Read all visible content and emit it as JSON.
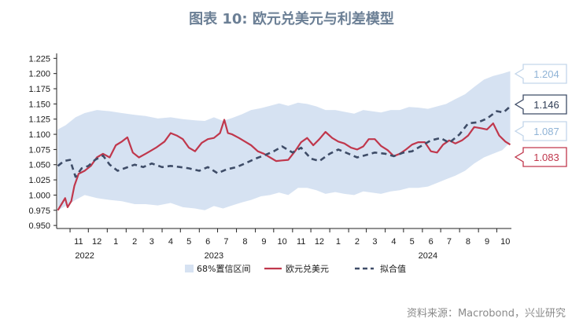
{
  "title": "图表 10: 欧元兑美元与利差模型",
  "source": "资料来源：Macrobond，兴业研究",
  "chart_data": {
    "type": "line",
    "yticks": [
      "1.225",
      "1.200",
      "1.175",
      "1.150",
      "1.125",
      "1.100",
      "1.075",
      "1.050",
      "1.025",
      "1.000",
      "0.975",
      "0.950"
    ],
    "ylim": [
      0.945,
      1.228
    ],
    "xlim": [
      "2022-10-10",
      "2024-10-25"
    ],
    "month_labels": [
      {
        "date": "2022-11-15",
        "label": "11"
      },
      {
        "date": "2022-12-15",
        "label": "12"
      },
      {
        "date": "2023-01-15",
        "label": "1"
      },
      {
        "date": "2023-02-15",
        "label": "2"
      },
      {
        "date": "2023-03-15",
        "label": "3"
      },
      {
        "date": "2023-04-15",
        "label": "4"
      },
      {
        "date": "2023-05-15",
        "label": "5"
      },
      {
        "date": "2023-06-15",
        "label": "6"
      },
      {
        "date": "2023-07-15",
        "label": "7"
      },
      {
        "date": "2023-08-15",
        "label": "8"
      },
      {
        "date": "2023-09-15",
        "label": "9"
      },
      {
        "date": "2023-10-15",
        "label": "10"
      },
      {
        "date": "2023-11-15",
        "label": "11"
      },
      {
        "date": "2023-12-15",
        "label": "12"
      },
      {
        "date": "2024-01-15",
        "label": "1"
      },
      {
        "date": "2024-02-15",
        "label": "2"
      },
      {
        "date": "2024-03-15",
        "label": "3"
      },
      {
        "date": "2024-04-15",
        "label": "4"
      },
      {
        "date": "2024-05-15",
        "label": "5"
      },
      {
        "date": "2024-06-15",
        "label": "6"
      },
      {
        "date": "2024-07-15",
        "label": "7"
      },
      {
        "date": "2024-08-15",
        "label": "8"
      },
      {
        "date": "2024-09-15",
        "label": "9"
      },
      {
        "date": "2024-10-15",
        "label": "10"
      }
    ],
    "year_labels": [
      {
        "date": "2022-11-25",
        "label": "2022"
      },
      {
        "date": "2023-06-25",
        "label": "2023"
      },
      {
        "date": "2024-06-10",
        "label": "2024"
      }
    ],
    "series": [
      {
        "name": "68%置信区间",
        "kind": "band",
        "color": "#d6e2f2",
        "x": [
          "2022-10-12",
          "2022-10-25",
          "2022-11-10",
          "2022-11-25",
          "2022-12-15",
          "2023-01-05",
          "2023-01-25",
          "2023-02-15",
          "2023-03-05",
          "2023-03-25",
          "2023-04-15",
          "2023-05-05",
          "2023-05-25",
          "2023-06-10",
          "2023-06-25",
          "2023-07-10",
          "2023-07-25",
          "2023-08-10",
          "2023-08-25",
          "2023-09-10",
          "2023-09-25",
          "2023-10-10",
          "2023-10-25",
          "2023-11-10",
          "2023-11-25",
          "2023-12-10",
          "2023-12-25",
          "2024-01-10",
          "2024-01-25",
          "2024-02-10",
          "2024-02-25",
          "2024-03-10",
          "2024-03-25",
          "2024-04-10",
          "2024-04-25",
          "2024-05-10",
          "2024-05-25",
          "2024-06-10",
          "2024-06-25",
          "2024-07-10",
          "2024-07-25",
          "2024-08-10",
          "2024-08-25",
          "2024-09-10",
          "2024-09-25",
          "2024-10-10",
          "2024-10-23"
        ],
        "upper": [
          1.108,
          1.115,
          1.128,
          1.135,
          1.14,
          1.138,
          1.135,
          1.132,
          1.13,
          1.126,
          1.128,
          1.125,
          1.123,
          1.122,
          1.128,
          1.122,
          1.127,
          1.133,
          1.14,
          1.143,
          1.147,
          1.151,
          1.147,
          1.152,
          1.15,
          1.146,
          1.14,
          1.14,
          1.137,
          1.134,
          1.14,
          1.138,
          1.136,
          1.14,
          1.14,
          1.145,
          1.144,
          1.142,
          1.146,
          1.15,
          1.158,
          1.166,
          1.178,
          1.19,
          1.196,
          1.2,
          1.204
        ],
        "lower": [
          0.975,
          0.982,
          0.992,
          1.0,
          0.995,
          0.992,
          0.99,
          0.985,
          0.985,
          0.983,
          0.987,
          0.98,
          0.978,
          0.975,
          0.982,
          0.978,
          0.983,
          0.988,
          0.992,
          0.998,
          1.0,
          1.004,
          1.0,
          1.012,
          1.012,
          1.008,
          1.002,
          1.005,
          1.002,
          1.0,
          1.006,
          1.004,
          1.002,
          1.006,
          1.008,
          1.012,
          1.012,
          1.014,
          1.02,
          1.026,
          1.032,
          1.04,
          1.052,
          1.062,
          1.068,
          1.074,
          1.087
        ]
      },
      {
        "name": "欧元兑美元",
        "kind": "line",
        "color": "#c0374c",
        "x": [
          "2022-10-12",
          "2022-10-18",
          "2022-10-24",
          "2022-10-28",
          "2022-11-03",
          "2022-11-08",
          "2022-11-15",
          "2022-11-25",
          "2022-12-05",
          "2022-12-15",
          "2022-12-25",
          "2023-01-05",
          "2023-01-15",
          "2023-01-25",
          "2023-02-03",
          "2023-02-12",
          "2023-02-22",
          "2023-03-05",
          "2023-03-12",
          "2023-03-22",
          "2023-04-05",
          "2023-04-15",
          "2023-04-25",
          "2023-05-05",
          "2023-05-15",
          "2023-05-25",
          "2023-06-05",
          "2023-06-15",
          "2023-06-25",
          "2023-07-05",
          "2023-07-12",
          "2023-07-18",
          "2023-07-25",
          "2023-08-05",
          "2023-08-15",
          "2023-08-25",
          "2023-09-05",
          "2023-09-15",
          "2023-09-25",
          "2023-10-05",
          "2023-10-15",
          "2023-10-25",
          "2023-11-05",
          "2023-11-15",
          "2023-11-25",
          "2023-12-05",
          "2023-12-15",
          "2023-12-25",
          "2024-01-05",
          "2024-01-15",
          "2024-01-25",
          "2024-02-05",
          "2024-02-15",
          "2024-02-25",
          "2024-03-05",
          "2024-03-15",
          "2024-03-25",
          "2024-04-05",
          "2024-04-15",
          "2024-04-25",
          "2024-05-05",
          "2024-05-15",
          "2024-05-25",
          "2024-06-05",
          "2024-06-15",
          "2024-06-25",
          "2024-07-05",
          "2024-07-15",
          "2024-07-25",
          "2024-08-05",
          "2024-08-15",
          "2024-08-25",
          "2024-09-05",
          "2024-09-15",
          "2024-09-25",
          "2024-10-05",
          "2024-10-15",
          "2024-10-23"
        ],
        "y": [
          0.975,
          0.985,
          0.995,
          0.98,
          0.99,
          1.015,
          1.035,
          1.04,
          1.048,
          1.062,
          1.068,
          1.062,
          1.082,
          1.088,
          1.095,
          1.07,
          1.062,
          1.068,
          1.072,
          1.078,
          1.088,
          1.102,
          1.098,
          1.092,
          1.078,
          1.072,
          1.086,
          1.092,
          1.094,
          1.102,
          1.124,
          1.102,
          1.1,
          1.094,
          1.088,
          1.082,
          1.072,
          1.068,
          1.062,
          1.056,
          1.057,
          1.058,
          1.072,
          1.087,
          1.094,
          1.082,
          1.092,
          1.104,
          1.094,
          1.088,
          1.085,
          1.078,
          1.075,
          1.08,
          1.092,
          1.092,
          1.081,
          1.074,
          1.064,
          1.068,
          1.075,
          1.083,
          1.087,
          1.087,
          1.072,
          1.07,
          1.083,
          1.09,
          1.085,
          1.09,
          1.098,
          1.112,
          1.11,
          1.108,
          1.118,
          1.098,
          1.088,
          1.083
        ]
      },
      {
        "name": "拟合值",
        "kind": "dashed",
        "color": "#3f4d68",
        "x": [
          "2022-10-12",
          "2022-10-22",
          "2022-11-01",
          "2022-11-10",
          "2022-11-20",
          "2022-12-01",
          "2022-12-12",
          "2022-12-25",
          "2023-01-05",
          "2023-01-18",
          "2023-02-01",
          "2023-02-15",
          "2023-03-01",
          "2023-03-15",
          "2023-04-01",
          "2023-04-15",
          "2023-05-01",
          "2023-05-15",
          "2023-06-01",
          "2023-06-15",
          "2023-07-01",
          "2023-07-15",
          "2023-08-01",
          "2023-08-15",
          "2023-09-01",
          "2023-09-15",
          "2023-10-01",
          "2023-10-15",
          "2023-11-01",
          "2023-11-15",
          "2023-12-01",
          "2023-12-15",
          "2024-01-01",
          "2024-01-15",
          "2024-02-01",
          "2024-02-15",
          "2024-03-01",
          "2024-03-15",
          "2024-04-01",
          "2024-04-15",
          "2024-05-01",
          "2024-05-15",
          "2024-06-01",
          "2024-06-15",
          "2024-07-01",
          "2024-07-15",
          "2024-08-01",
          "2024-08-15",
          "2024-09-01",
          "2024-09-15",
          "2024-10-01",
          "2024-10-12",
          "2024-10-23"
        ],
        "y": [
          1.048,
          1.056,
          1.058,
          1.03,
          1.044,
          1.048,
          1.058,
          1.065,
          1.05,
          1.04,
          1.045,
          1.05,
          1.046,
          1.052,
          1.046,
          1.048,
          1.046,
          1.044,
          1.04,
          1.046,
          1.036,
          1.042,
          1.046,
          1.052,
          1.06,
          1.065,
          1.072,
          1.08,
          1.07,
          1.078,
          1.06,
          1.056,
          1.068,
          1.075,
          1.068,
          1.062,
          1.066,
          1.07,
          1.068,
          1.064,
          1.07,
          1.072,
          1.082,
          1.09,
          1.094,
          1.086,
          1.1,
          1.118,
          1.12,
          1.126,
          1.138,
          1.136,
          1.146
        ]
      }
    ],
    "callouts": [
      {
        "label": "1.204",
        "value": 1.204,
        "color": "#8fb3d6",
        "border": "#c3d6ea"
      },
      {
        "label": "1.146",
        "value": 1.146,
        "color": "#2f3d55",
        "border": "#3f4d68"
      },
      {
        "label": "1.087",
        "value": 1.087,
        "color": "#8fb3d6",
        "border": "#c3d6ea"
      },
      {
        "label": "1.083",
        "value": 1.083,
        "color": "#c0374c",
        "border": "#c0374c"
      }
    ],
    "legend": [
      {
        "label": "68%置信区间",
        "kind": "band",
        "color": "#d6e2f2"
      },
      {
        "label": "欧元兑美元",
        "kind": "line",
        "color": "#c0374c"
      },
      {
        "label": "拟合值",
        "kind": "dashed",
        "color": "#3f4d68"
      }
    ]
  }
}
